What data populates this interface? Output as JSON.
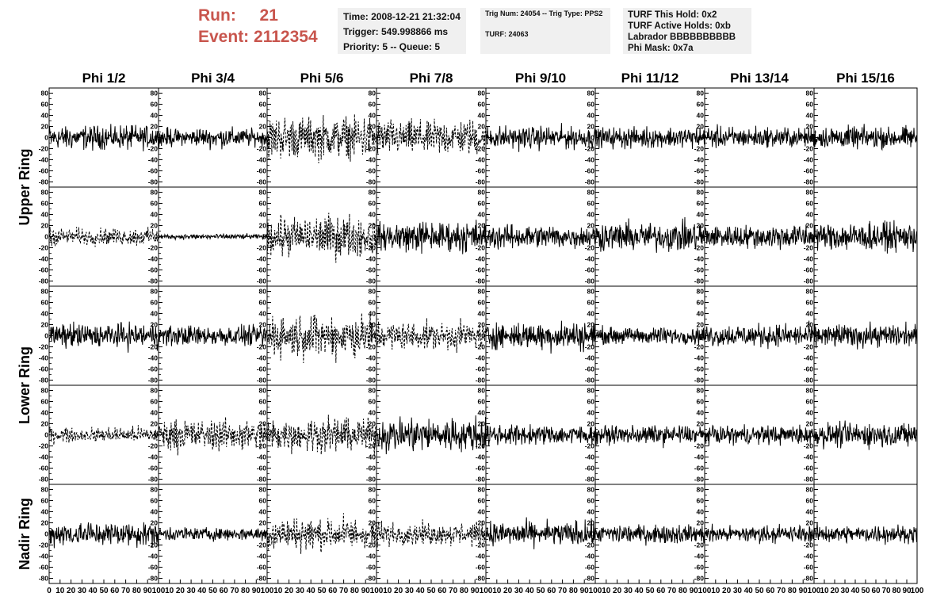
{
  "header": {
    "run_label": "Run:",
    "run_value": "21",
    "event_label": "Event:",
    "event_value": "2112354",
    "info1": [
      "Time: 2008-12-21 21:32:04",
      "Trigger: 549.998866 ms",
      "Priority: 5 -- Queue: 5"
    ],
    "info2": [
      "Trig Num: 24054 -- Trig Type: PPS2",
      "TURF: 24063"
    ],
    "info3": [
      "TURF This Hold: 0x2",
      "TURF Active Holds: 0xb",
      "Labrador BBBBBBBBBB",
      "Phi Mask: 0x7a"
    ]
  },
  "colors": {
    "run_text": "#c8554d",
    "info_bg": "#f0f0f0",
    "trace": "#000000"
  },
  "chart_data": {
    "type": "line",
    "title": "",
    "columns": [
      "Phi 1/2",
      "Phi 3/4",
      "Phi 5/6",
      "Phi 7/8",
      "Phi 9/10",
      "Phi 11/12",
      "Phi 13/14",
      "Phi 15/16"
    ],
    "row_groups": [
      {
        "label": "Upper Ring",
        "rows": [
          0,
          1
        ]
      },
      {
        "label": "Lower Ring",
        "rows": [
          2,
          3
        ]
      },
      {
        "label": "Nadir Ring",
        "rows": [
          4
        ]
      }
    ],
    "ylim": [
      -85,
      85
    ],
    "xlim": [
      0,
      100
    ],
    "y_ticks": [
      80,
      60,
      40,
      20,
      0,
      -20,
      -40,
      -60,
      -80
    ],
    "y_tick_labels": [
      "80",
      "60",
      "40",
      "20",
      "0",
      "-20",
      "-40",
      "-60",
      "-80"
    ],
    "x_ticks": [
      0,
      10,
      20,
      30,
      40,
      50,
      60,
      70,
      80,
      90,
      100
    ],
    "x_tick_labels": [
      "0",
      "10",
      "20",
      "30",
      "40",
      "50",
      "60",
      "70",
      "80",
      "90",
      "100"
    ],
    "grid": false,
    "samples_per_trace": 260,
    "traces": [
      [
        {
          "amp": 14,
          "style": "solid"
        },
        {
          "amp": 11,
          "style": "solid"
        },
        {
          "amp": 24,
          "style": "dashed"
        },
        {
          "amp": 20,
          "style": "dashed"
        },
        {
          "amp": 13,
          "style": "solid"
        },
        {
          "amp": 12,
          "style": "solid"
        },
        {
          "amp": 12,
          "style": "solid"
        },
        {
          "amp": 13,
          "style": "solid"
        }
      ],
      [
        {
          "amp": 10,
          "style": "dashed"
        },
        {
          "amp": 3,
          "style": "solid"
        },
        {
          "amp": 25,
          "style": "dashed"
        },
        {
          "amp": 18,
          "style": "solid"
        },
        {
          "amp": 14,
          "style": "solid"
        },
        {
          "amp": 17,
          "style": "solid"
        },
        {
          "amp": 14,
          "style": "solid"
        },
        {
          "amp": 17,
          "style": "solid"
        }
      ],
      [
        {
          "amp": 14,
          "style": "solid"
        },
        {
          "amp": 12,
          "style": "solid"
        },
        {
          "amp": 25,
          "style": "dashed"
        },
        {
          "amp": 16,
          "style": "dashed"
        },
        {
          "amp": 16,
          "style": "solid"
        },
        {
          "amp": 10,
          "style": "solid"
        },
        {
          "amp": 13,
          "style": "solid"
        },
        {
          "amp": 13,
          "style": "solid"
        }
      ],
      [
        {
          "amp": 9,
          "style": "dashed"
        },
        {
          "amp": 18,
          "style": "dashed"
        },
        {
          "amp": 20,
          "style": "dashed"
        },
        {
          "amp": 20,
          "style": "solid"
        },
        {
          "amp": 12,
          "style": "solid"
        },
        {
          "amp": 11,
          "style": "solid"
        },
        {
          "amp": 11,
          "style": "solid"
        },
        {
          "amp": 14,
          "style": "solid"
        }
      ],
      [
        {
          "amp": 14,
          "style": "solid"
        },
        {
          "amp": 8,
          "style": "solid"
        },
        {
          "amp": 19,
          "style": "dashed"
        },
        {
          "amp": 13,
          "style": "dashed"
        },
        {
          "amp": 14,
          "style": "solid"
        },
        {
          "amp": 11,
          "style": "solid"
        },
        {
          "amp": 10,
          "style": "solid"
        },
        {
          "amp": 10,
          "style": "solid"
        }
      ]
    ]
  }
}
